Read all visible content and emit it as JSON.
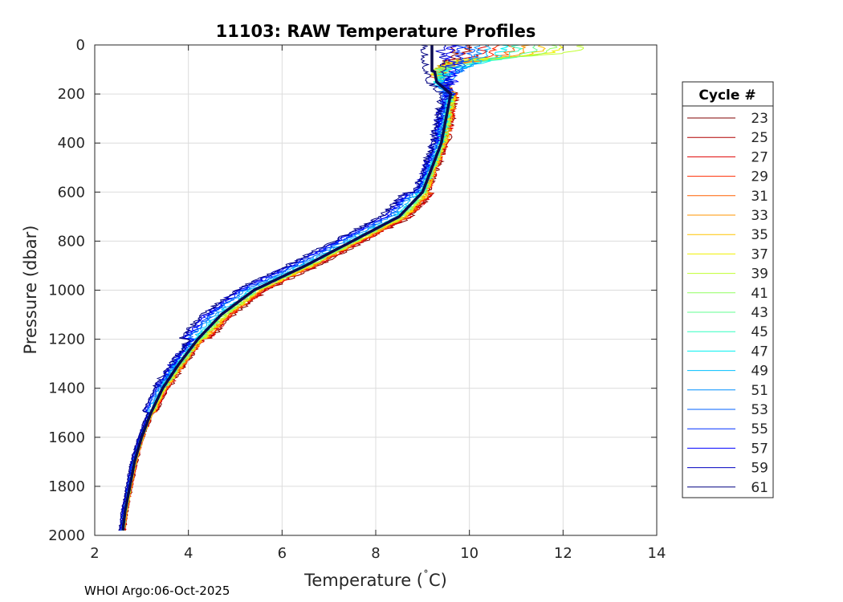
{
  "chart_data": {
    "type": "line",
    "title": "11103: RAW Temperature Profiles",
    "xlabel": "Temperature (",
    "xlabel_degree": "˚",
    "xlabel_unit": "C)",
    "ylabel": "Pressure (dbar)",
    "xlim": [
      2,
      14
    ],
    "ylim": [
      0,
      2000
    ],
    "y_reversed": true,
    "grid": true,
    "xticks": [
      2,
      4,
      6,
      8,
      10,
      12,
      14
    ],
    "yticks": [
      0,
      200,
      400,
      600,
      800,
      1000,
      1200,
      1400,
      1600,
      1800,
      2000
    ],
    "legend_title": "Cycle #",
    "legend_position": "right-outside",
    "base_profile": [
      [
        0,
        9.2
      ],
      [
        100,
        9.25
      ],
      [
        150,
        9.3
      ],
      [
        200,
        9.6
      ],
      [
        300,
        9.5
      ],
      [
        400,
        9.4
      ],
      [
        500,
        9.2
      ],
      [
        600,
        9.0
      ],
      [
        700,
        8.5
      ],
      [
        800,
        7.5
      ],
      [
        900,
        6.5
      ],
      [
        1000,
        5.4
      ],
      [
        1100,
        4.7
      ],
      [
        1200,
        4.2
      ],
      [
        1300,
        3.8
      ],
      [
        1400,
        3.45
      ],
      [
        1500,
        3.2
      ],
      [
        1600,
        3.0
      ],
      [
        1700,
        2.85
      ],
      [
        1800,
        2.75
      ],
      [
        1900,
        2.65
      ],
      [
        1980,
        2.6
      ]
    ],
    "series": [
      {
        "name": "23",
        "color": "#800000",
        "surface_temp": 9.7,
        "mixed_depth": 60,
        "offset": 0.12
      },
      {
        "name": "25",
        "color": "#b00000",
        "surface_temp": 10.0,
        "mixed_depth": 65,
        "offset": 0.1
      },
      {
        "name": "27",
        "color": "#e00000",
        "surface_temp": 10.3,
        "mixed_depth": 70,
        "offset": 0.1
      },
      {
        "name": "29",
        "color": "#ff2a00",
        "surface_temp": 10.6,
        "mixed_depth": 75,
        "offset": 0.08
      },
      {
        "name": "31",
        "color": "#ff6000",
        "surface_temp": 10.9,
        "mixed_depth": 80,
        "offset": 0.08
      },
      {
        "name": "33",
        "color": "#ff9500",
        "surface_temp": 11.2,
        "mixed_depth": 75,
        "offset": 0.06
      },
      {
        "name": "35",
        "color": "#ffc400",
        "surface_temp": 11.6,
        "mixed_depth": 70,
        "offset": 0.06
      },
      {
        "name": "37",
        "color": "#f0f000",
        "surface_temp": 12.0,
        "mixed_depth": 65,
        "offset": 0.05
      },
      {
        "name": "39",
        "color": "#c0ff30",
        "surface_temp": 12.4,
        "mixed_depth": 60,
        "offset": 0.04
      },
      {
        "name": "41",
        "color": "#90ff60",
        "surface_temp": 11.8,
        "mixed_depth": 70,
        "offset": 0.03
      },
      {
        "name": "43",
        "color": "#60ff90",
        "surface_temp": 11.4,
        "mixed_depth": 80,
        "offset": 0.02
      },
      {
        "name": "45",
        "color": "#30ffc0",
        "surface_temp": 11.0,
        "mixed_depth": 90,
        "offset": 0.0
      },
      {
        "name": "47",
        "color": "#00f0f0",
        "surface_temp": 10.7,
        "mixed_depth": 100,
        "offset": -0.02
      },
      {
        "name": "49",
        "color": "#00c0ff",
        "surface_temp": 10.4,
        "mixed_depth": 110,
        "offset": -0.04
      },
      {
        "name": "51",
        "color": "#0090ff",
        "surface_temp": 10.2,
        "mixed_depth": 120,
        "offset": -0.08
      },
      {
        "name": "53",
        "color": "#0060ff",
        "surface_temp": 10.0,
        "mixed_depth": 130,
        "offset": -0.1
      },
      {
        "name": "55",
        "color": "#0030ff",
        "surface_temp": 9.8,
        "mixed_depth": 140,
        "offset": -0.12
      },
      {
        "name": "57",
        "color": "#0000ff",
        "surface_temp": 9.6,
        "mixed_depth": 150,
        "offset": -0.14
      },
      {
        "name": "59",
        "color": "#0000c0",
        "surface_temp": 9.4,
        "mixed_depth": 160,
        "offset": -0.16
      },
      {
        "name": "61",
        "color": "#000080",
        "surface_temp": 9.2,
        "mixed_depth": 0,
        "offset": -0.18
      }
    ],
    "mean_profile_color": "#0a0a50"
  },
  "footer": "WHOI Argo:06-Oct-2025"
}
